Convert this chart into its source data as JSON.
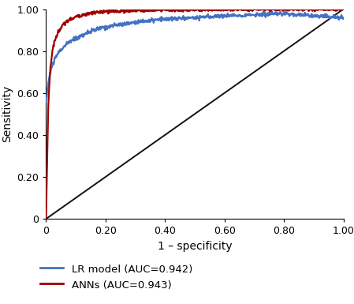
{
  "title": "",
  "xlabel": "1 – specificity",
  "ylabel": "Sensitivity",
  "xlim": [
    0,
    1.0
  ],
  "ylim": [
    0,
    1.0
  ],
  "xticks": [
    0,
    0.2,
    0.4,
    0.6,
    0.8,
    1.0
  ],
  "yticks": [
    0,
    0.2,
    0.4,
    0.6,
    0.8,
    1.0
  ],
  "xticklabels": [
    "0",
    "0.20",
    "0.40",
    "0.60",
    "0.80",
    "1.00"
  ],
  "yticklabels": [
    "0",
    "0.20",
    "0.40",
    "0.60",
    "0.80",
    "1.00"
  ],
  "lr_color": "#4472C4",
  "ann_color": "#A00000",
  "diag_color": "#111111",
  "lr_label": "LR model (AUC=0.942)",
  "ann_label": "ANNs (AUC=0.943)",
  "linewidth": 1.6,
  "background_color": "#ffffff",
  "legend_fontsize": 9.5,
  "axis_fontsize": 10,
  "tick_fontsize": 9,
  "lr_waypoints_fpr": [
    0.0,
    0.005,
    0.01,
    0.02,
    0.04,
    0.06,
    0.08,
    0.1,
    0.12,
    0.15,
    0.18,
    0.22,
    0.3,
    0.4,
    0.6,
    0.8,
    1.0
  ],
  "lr_waypoints_tpr": [
    0.56,
    0.62,
    0.67,
    0.73,
    0.79,
    0.82,
    0.845,
    0.86,
    0.875,
    0.893,
    0.908,
    0.92,
    0.938,
    0.952,
    0.968,
    0.978,
    0.96
  ],
  "ann_waypoints_fpr": [
    0.0,
    0.004,
    0.008,
    0.015,
    0.025,
    0.04,
    0.06,
    0.08,
    0.1,
    0.13,
    0.16,
    0.2,
    0.3,
    0.5,
    0.7,
    1.0
  ],
  "ann_waypoints_tpr": [
    0.0,
    0.3,
    0.56,
    0.73,
    0.83,
    0.89,
    0.93,
    0.95,
    0.963,
    0.975,
    0.982,
    0.988,
    0.993,
    0.997,
    0.999,
    1.0
  ],
  "noise_lr": 0.005,
  "noise_ann": 0.004,
  "n_points": 800
}
